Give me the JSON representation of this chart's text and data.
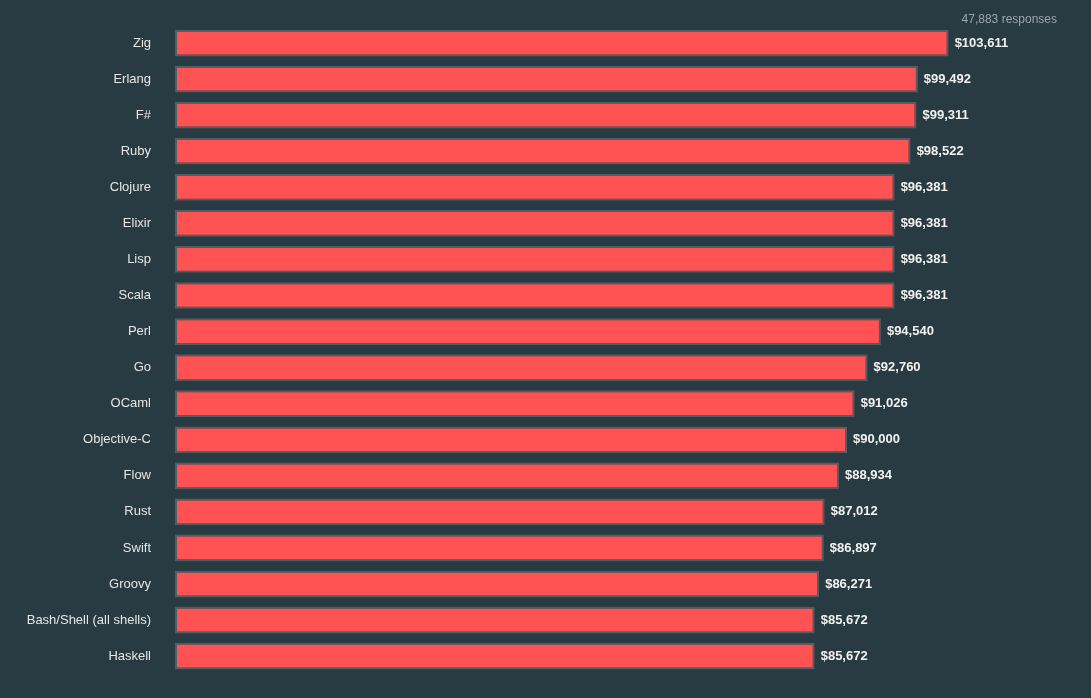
{
  "chart_data": {
    "type": "bar",
    "orientation": "horizontal",
    "categories": [
      "Zig",
      "Erlang",
      "F#",
      "Ruby",
      "Clojure",
      "Elixir",
      "Lisp",
      "Scala",
      "Perl",
      "Go",
      "OCaml",
      "Objective-C",
      "Flow",
      "Rust",
      "Swift",
      "Groovy",
      "Bash/Shell (all shells)",
      "Haskell"
    ],
    "values": [
      103611,
      99492,
      99311,
      98522,
      96381,
      96381,
      96381,
      96381,
      94540,
      92760,
      91026,
      90000,
      88934,
      87012,
      86897,
      86271,
      85672,
      85672
    ],
    "value_labels": [
      "$103,611",
      "$99,492",
      "$99,311",
      "$98,522",
      "$96,381",
      "$96,381",
      "$96,381",
      "$96,381",
      "$94,540",
      "$92,760",
      "$91,026",
      "$90,000",
      "$88,934",
      "$87,012",
      "$86,897",
      "$86,271",
      "$85,672",
      "$85,672"
    ],
    "color": "#ff5252",
    "tick_labels": "y",
    "annotations": [
      "47,883 responses"
    ]
  }
}
